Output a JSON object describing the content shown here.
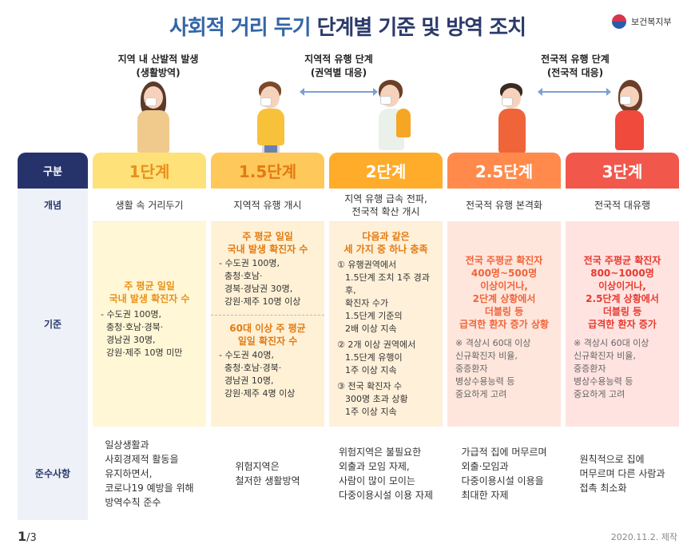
{
  "title": {
    "part1": "사회적 거리 두기",
    "part2": "단계별 기준 및 방역 조치"
  },
  "ministry": "보건복지부",
  "captions": {
    "left": {
      "line1": "지역 내 산발적 발생",
      "line2": "(생활방역)"
    },
    "middle": {
      "line1": "지역적 유행 단계",
      "line2": "(권역별 대응)"
    },
    "right": {
      "line1": "전국적 유행 단계",
      "line2": "(전국적 대응)"
    }
  },
  "row_labels": {
    "header": "구분",
    "concept": "개념",
    "criteria": "기준",
    "comply": "준수사항"
  },
  "levels": [
    {
      "name": "1단계",
      "concept": "생활 속 거리두기",
      "criteria_head": "주 평균 일일\n국내 발생 확진자 수",
      "criteria_body": "- 수도권 100명,\n  충청·호남·경북·\n  경남권 30명,\n  강원·제주 10명 미만",
      "comply": "일상생활과\n사회경제적 활동을\n유지하면서,\n코로나19 예방을 위해\n방역수칙 준수"
    },
    {
      "name": "1.5단계",
      "concept": "지역적 유행 개시",
      "criteria_head": "주 평균 일일\n국내 발생 확진자 수",
      "criteria_body": "- 수도권 100명,\n  충청·호남·\n  경북·경남권 30명,\n  강원·제주 10명 이상",
      "criteria_head2": "60대 이상 주 평균\n일일 확진자 수",
      "criteria_body2": "- 수도권 40명,\n  충청·호남·경북·\n  경남권 10명,\n  강원·제주 4명 이상",
      "comply": "위험지역은\n철저한 생활방역"
    },
    {
      "name": "2단계",
      "concept": "지역 유행 급속 전파,\n전국적 확산 개시",
      "criteria_head": "다음과 같은\n세 가지 중 하나 충족",
      "criteria_item1": "① 유행권역에서\n1.5단계 조치 1주 경과 후,\n확진자 수가\n1.5단계 기준의\n2배 이상 지속",
      "criteria_item2": "② 2개 이상 권역에서\n1.5단계 유행이\n1주 이상 지속",
      "criteria_item3": "③ 전국 확진자 수\n300명 초과 상황\n1주 이상 지속",
      "comply": "위험지역은 불필요한\n외출과 모임 자제,\n사람이 많이 모이는\n다중이용시설 이용 자제"
    },
    {
      "name": "2.5단계",
      "concept": "전국적 유행 본격화",
      "criteria_head": "전국 주평균 확진자\n400명~500명\n이상이거나,\n2단계 상황에서\n더블링 등\n급격한 환자 증가 상황",
      "criteria_note": "※ 격상시 60대 이상\n신규확진자 비율,\n중증환자\n병상수용능력 등\n중요하게 고려",
      "comply": "가급적 집에 머무르며\n외출·모임과\n다중이용시설 이용을\n최대한 자제"
    },
    {
      "name": "3단계",
      "concept": "전국적 대유행",
      "criteria_head": "전국 주평균 확진자\n800~1000명\n이상이거나,\n2.5단계 상황에서\n더블링 등\n급격한 환자 증가",
      "criteria_note": "※ 격상시 60대 이상\n신규확진자 비율,\n중증환자\n병상수용능력 등\n중요하게 고려",
      "comply": "원칙적으로 집에\n머무르며 다른 사람과\n접촉 최소화"
    }
  ],
  "colors": {
    "header_label": "#26336b",
    "lvl1": "#ffe17a",
    "lvl1_text": "#e8911c",
    "lvl1_bg": "#fff7d6",
    "lvl15": "#ffc85a",
    "lvl15_text": "#e27b12",
    "lvl15_bg": "#fff1d6",
    "lvl2": "#ffac2b",
    "lvl2_bg": "#fff0d9",
    "lvl25": "#ff8a4c",
    "lvl25_bg": "#ffe6dc",
    "lvl3": "#f2574c",
    "lvl3_bg": "#ffe3e0"
  },
  "footer": {
    "page": "1",
    "total": "/3",
    "date": "2020.11.2. 제작"
  }
}
